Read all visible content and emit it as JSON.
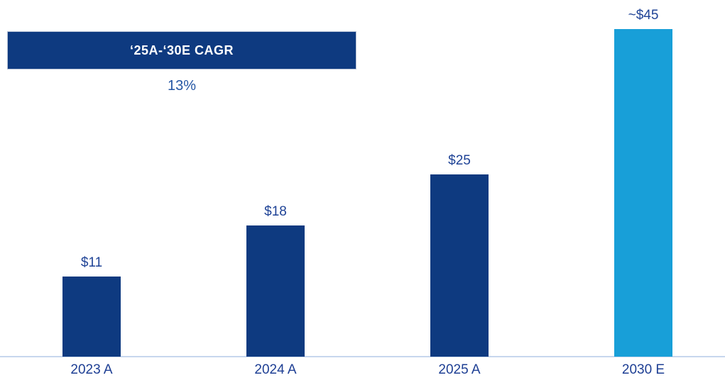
{
  "chart_data": {
    "type": "bar",
    "title": "",
    "categories": [
      "2023 A",
      "2024 A",
      "2025 A",
      "2030 E"
    ],
    "values": [
      11,
      18,
      25,
      45
    ],
    "value_labels": [
      "$11",
      "$18",
      "$25",
      "~$45"
    ],
    "bar_colors": [
      "#0e3a80",
      "#0e3a80",
      "#0e3a80",
      "#189fd8"
    ],
    "ylim": [
      0,
      45
    ],
    "gridlines": false,
    "legend": "none",
    "annotation": {
      "header": "‘25A-‘30E CAGR",
      "value": "13%"
    }
  },
  "colors": {
    "navy": "#0e3a80",
    "cyan": "#189fd8",
    "label_text_blue": "#1f4396",
    "axis_text_blue": "#1e3f94",
    "baseline_light_blue": "#c7d7ee",
    "header_text": "#ffffff"
  }
}
